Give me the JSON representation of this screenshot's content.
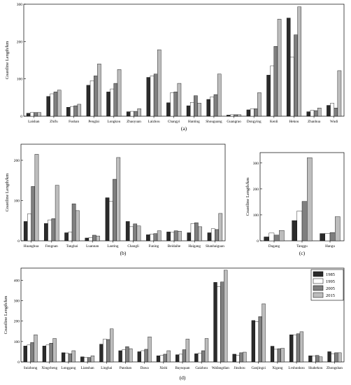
{
  "colors": [
    "#2b2b2b",
    "#ffffff",
    "#7f7f7f",
    "#bdbdbd"
  ],
  "legend": [
    "1985",
    "1995",
    "2005",
    "2015"
  ],
  "chart_data": [
    {
      "type": "bar",
      "panel_label": "(a)",
      "ylabel": "Coastline Length/km",
      "ylim": [
        0,
        300
      ],
      "yticks": [
        "0",
        "100",
        "200",
        "300"
      ],
      "categories": [
        "Laishan",
        "Zhifu",
        "Fushan",
        "Penglai",
        "Longkou",
        "Zhaoyuan",
        "Laizhou",
        "Changyi",
        "Hanting",
        "Shouguang",
        "Guangrao",
        "Dongying",
        "Kenli",
        "Hekou",
        "Zhanhua",
        "Wudi"
      ],
      "series": [
        {
          "name": "1985",
          "values": [
            8,
            53,
            24,
            83,
            65,
            12,
            104,
            36,
            28,
            45,
            3,
            17,
            110,
            263,
            12,
            29
          ]
        },
        {
          "name": "1995",
          "values": [
            10,
            60,
            26,
            95,
            73,
            13,
            108,
            63,
            37,
            52,
            4,
            20,
            135,
            158,
            16,
            35
          ]
        },
        {
          "name": "2005",
          "values": [
            10,
            65,
            28,
            108,
            88,
            13,
            113,
            65,
            55,
            58,
            4,
            20,
            187,
            218,
            15,
            22
          ]
        },
        {
          "name": "2015",
          "values": [
            10,
            70,
            32,
            140,
            125,
            20,
            178,
            88,
            35,
            113,
            4,
            63,
            260,
            293,
            22,
            122
          ]
        }
      ]
    },
    {
      "type": "bar",
      "panel_label": "(b)",
      "ylabel": "Coastline Length/km",
      "ylim": [
        0,
        240
      ],
      "yticks": [
        "0",
        "100",
        "200"
      ],
      "categories": [
        "Huanghua",
        "Fengnan",
        "Tanghai",
        "Luannan",
        "Laoting",
        "Changli",
        "Funing",
        "Beidaihe",
        "Haigang",
        "Shanhaiguan"
      ],
      "series": [
        {
          "name": "1985",
          "values": [
            48,
            43,
            20,
            7,
            107,
            48,
            15,
            22,
            20,
            20
          ]
        },
        {
          "name": "1995",
          "values": [
            67,
            52,
            22,
            8,
            98,
            35,
            17,
            21,
            43,
            30
          ]
        },
        {
          "name": "2005",
          "values": [
            135,
            55,
            92,
            14,
            153,
            42,
            18,
            25,
            45,
            28
          ]
        },
        {
          "name": "2015",
          "values": [
            215,
            138,
            75,
            12,
            207,
            37,
            25,
            24,
            35,
            68
          ]
        }
      ]
    },
    {
      "type": "bar",
      "panel_label": "(c)",
      "ylabel": "Coastline Length/km",
      "ylim": [
        0,
        340
      ],
      "yticks": [
        "0",
        "100",
        "200",
        "300"
      ],
      "categories": [
        "Dagang",
        "Tanggu",
        "Hangu"
      ],
      "series": [
        {
          "name": "1985",
          "values": [
            15,
            78,
            28
          ]
        },
        {
          "name": "1995",
          "values": [
            30,
            115,
            28
          ]
        },
        {
          "name": "2005",
          "values": [
            22,
            152,
            32
          ]
        },
        {
          "name": "2015",
          "values": [
            40,
            320,
            93
          ]
        }
      ]
    },
    {
      "type": "bar",
      "panel_label": "(d)",
      "ylabel": "Coastline Length/km",
      "ylim": [
        0,
        460
      ],
      "yticks": [
        "0",
        "100",
        "200",
        "300",
        "400"
      ],
      "legend_position": "top-right",
      "categories": [
        "Suizhong",
        "Xingcheng",
        "Longgang",
        "Lianshan",
        "Linghai",
        "Panshan",
        "Dawa",
        "Xishi",
        "Bayuquan",
        "Gaizhou",
        "Wafangdian",
        "Jinzhou",
        "Ganjingzi",
        "Xigang",
        "Lvshunkou",
        "Shahekou",
        "Zhongshan"
      ],
      "series": [
        {
          "name": "1985",
          "values": [
            78,
            78,
            45,
            25,
            87,
            55,
            50,
            30,
            35,
            40,
            390,
            38,
            203,
            77,
            133,
            30,
            50
          ]
        },
        {
          "name": "1995",
          "values": [
            83,
            83,
            44,
            22,
            112,
            60,
            55,
            32,
            38,
            42,
            368,
            33,
            198,
            62,
            132,
            28,
            40
          ]
        },
        {
          "name": "2005",
          "values": [
            95,
            92,
            40,
            22,
            110,
            75,
            62,
            38,
            60,
            55,
            392,
            45,
            222,
            65,
            138,
            32,
            45
          ]
        },
        {
          "name": "2015",
          "values": [
            133,
            115,
            55,
            30,
            162,
            65,
            123,
            55,
            112,
            115,
            450,
            48,
            285,
            67,
            148,
            25,
            45
          ]
        }
      ]
    }
  ]
}
